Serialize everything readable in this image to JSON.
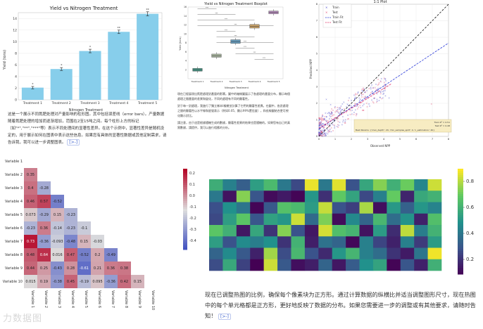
{
  "panel_bar": {
    "title": "Yield vs Nitrogen Treatment",
    "xlabel": "Nitrogen Treatment",
    "ylabel": "Yield (tons)",
    "paragraph": "这是一个展示不同氮肥处理对产量影响的柱形图。其中包括误差线（error bars）。产量数据随着氮肥处理的增加而逐渐增加，范围在2至15吨之间。每个柱形上方的标记（如\"*\",\"**\",\"***\"等）表示不同处理间的显著性差异。在这个示例中，显著性差异是随机设定的，用于展示如何在图表中表示这些信息。如果您有具体的显著性数据或其他定制需求，请告诉我，我可以进一步调整图表。",
    "regen": "[>-]"
  },
  "panel_box": {
    "title": "Yield vs Nitrogen Treatment Boxplot",
    "xlabel": "Nitrogen Treatment",
    "ylabel": "Yield (tons)",
    "p1": "現在已經展現出氮肥處理對產量的影響。圖中的箱線圖展示了各處理的產量分布，顯示每個處理之間產量的差異和變化，不同的處理有不同的顯著性。",
    "p2": "對于每一對處理，我進行了獨立樣本t檢驗並計算了它們的顯著性差異。在圖中，各對處理之間的顯著性以水平線和星號表示（例如0.05、顯示99%置信度），和長線圖結合更可視化顯示對比。",
    "p3": "請注意，由于這是根據隨機生成的數據，顯著性差異的結果也是隨機的。如果您有自己的真實數據，請提供，我可以進行相應的分析。"
  },
  "panel_scatter": {
    "title": "1:1 Plot",
    "xlabel": "Observed NPP",
    "ylabel": "Predicted NPP",
    "legend": [
      "Train",
      "Test",
      "Train Fit",
      "Test Fit"
    ],
    "annot_train": "Train R² = 0.51",
    "annot_test": "Test R² = 0.48",
    "best_params": "Best Params: {'max_depth': 20, 'min_samples_split': 4, 'n_estimators': 40}"
  },
  "panel_corr": {
    "variables": [
      "Variable 1",
      "Variable 2",
      "Variable 3",
      "Variable 4",
      "Variable 5",
      "Variable 6",
      "Variable 7",
      "Variable 8",
      "Variable 9",
      "Variable 10"
    ],
    "colorbar_ticks": [
      "0.2",
      "0.1",
      "0.0",
      "-0.1",
      "-0.2",
      "-0.3",
      "-0.4"
    ],
    "rows": [
      [],
      [
        "0.35"
      ],
      [
        "0.4",
        "-0.28"
      ],
      [
        "0.46",
        "0.57",
        "-0.52"
      ],
      [
        "0.073",
        "-0.29",
        "0.15",
        "-0.23"
      ],
      [
        "-0.23",
        "0.36",
        "-0.14",
        "-0.23",
        "-0.1"
      ],
      [
        "0.73",
        "-0.36",
        "-0.093",
        "-0.48",
        "0.15",
        "-0.03"
      ],
      [
        "0.48",
        "0.64",
        "0.016",
        "0.47",
        "-0.52",
        "0.2",
        "-0.49"
      ],
      [
        "0.44",
        "0.25",
        "-0.43",
        "0.28",
        "-0.61",
        "0.21",
        "0.36",
        "0.38"
      ],
      [
        "0.015",
        "0.19",
        "-0.38",
        "0.45",
        "-0.19",
        "0.095",
        "-0.36",
        "0.42",
        "0.15"
      ]
    ]
  },
  "panel_heat": {
    "colorbar_ticks": [
      "0.8",
      "0.6",
      "0.4",
      "0.2"
    ],
    "paragraph": "现在已调整热图的比例，确保每个像素块为正方形。通过计算数据的纵横比并适当调整图形尺寸，现在热图中的每个单元格都是正方形，更好地反映了数据的分布。如果您需要进一步的调整或有其他要求，请随时告知！",
    "regen": "[>-]"
  },
  "watermark": "力数据图",
  "chart_data": [
    {
      "type": "bar",
      "title": "Yield vs Nitrogen Treatment",
      "categories": [
        "Treatment 1",
        "Treatment 2",
        "Treatment 3",
        "Treatment 4",
        "Treatment 5"
      ],
      "values": [
        2.1,
        5.3,
        8.4,
        11.7,
        14.8
      ],
      "errors": [
        0.2,
        0.25,
        0.3,
        0.3,
        0.35
      ],
      "significance": [
        "*",
        "*",
        "*",
        "**",
        "**"
      ],
      "ylim": [
        0,
        15
      ],
      "yticks": [
        0,
        2,
        4,
        6,
        8,
        10,
        12,
        14
      ],
      "xlabel": "Nitrogen Treatment",
      "ylabel": "Yield (tons)",
      "color": "#87ceeb"
    },
    {
      "type": "box",
      "title": "Yield vs Nitrogen Treatment Boxplot",
      "categories": [
        "Treatment 1",
        "Treatment 2",
        "Treatment 3",
        "Treatment 4",
        "Treatment 5"
      ],
      "medians": [
        2.0,
        5.1,
        8.3,
        11.7,
        14.8
      ],
      "q1": [
        1.7,
        4.8,
        7.9,
        11.3,
        14.5
      ],
      "q3": [
        2.3,
        5.5,
        8.7,
        12.1,
        15.1
      ],
      "ylim": [
        0,
        16
      ],
      "yticks": [
        2,
        4,
        6,
        8,
        10,
        12,
        14,
        16
      ]
    },
    {
      "type": "scatter",
      "title": "1:1 Plot",
      "xlim": [
        0,
        8
      ],
      "ylim": [
        0,
        8
      ],
      "xticks": [
        0,
        1,
        2,
        3,
        4,
        5,
        6,
        7,
        8
      ],
      "yticks": [
        0,
        1,
        2,
        3,
        4,
        5,
        6,
        7,
        8
      ],
      "series": [
        {
          "name": "Train",
          "color": "#4040c8"
        },
        {
          "name": "Test",
          "color": "#e0406a"
        },
        {
          "name": "Train Fit",
          "color": "#2a3ad8",
          "slope": 0.65,
          "intercept": 0.45
        },
        {
          "name": "Test Fit",
          "color": "#e0306a",
          "slope": 0.6,
          "intercept": 0.5
        }
      ]
    },
    {
      "type": "heatmap",
      "title": "",
      "rows": 10,
      "cols": 10,
      "colormap": "lower-triangle correlation, coolwarm"
    },
    {
      "type": "heatmap",
      "title": "",
      "rows": 8,
      "cols": 17,
      "values": [
        [
          0.61,
          0.44,
          0.32,
          0.55,
          0.66,
          0.41,
          0.25,
          0.92,
          0.41,
          0.91,
          0.28,
          0.58,
          0.78,
          0.62,
          0.74,
          0.46,
          0.88
        ],
        [
          0.41,
          0.1,
          0.78,
          0.29,
          0.08,
          0.12,
          0.06,
          0.52,
          0.18,
          0.72,
          0.57,
          0.25,
          0.44,
          0.73,
          0.15,
          0.59,
          0.63
        ],
        [
          0.27,
          0.5,
          0.4,
          0.06,
          0.3,
          0.69,
          0.66,
          0.54,
          0.87,
          0.28,
          0.22,
          0.83,
          0.09,
          0.53,
          0.33,
          0.52,
          0.45
        ],
        [
          0.25,
          0.55,
          0.71,
          0.29,
          0.56,
          0.52,
          0.88,
          0.36,
          0.77,
          0.08,
          0.47,
          0.34,
          0.65,
          0.37,
          0.51,
          0.14,
          0.68
        ],
        [
          0.71,
          0.62,
          0.11,
          0.58,
          0.19,
          0.78,
          0.28,
          0.11,
          0.89,
          0.68,
          0.64,
          0.1,
          0.54,
          0.17,
          0.86,
          0.43,
          0.63
        ],
        [
          0.55,
          0.28,
          0.48,
          0.43,
          0.5,
          0.19,
          0.63,
          0.13,
          0.39,
          0.34,
          0.07,
          0.44,
          0.24,
          0.14,
          0.44,
          0.21,
          0.54
        ],
        [
          0.34,
          0.48,
          0.3,
          0.14,
          0.82,
          0.26,
          0.65,
          0.28,
          0.16,
          0.52,
          0.64,
          0.44,
          0.37,
          0.19,
          0.12,
          0.4,
          0.93
        ],
        [
          0.26,
          0.59,
          0.23,
          0.05,
          0.88,
          0.3,
          0.09,
          0.13,
          0.34,
          0.11,
          0.31,
          0.5,
          0.57,
          0.06,
          0.29,
          0.14,
          0.62
        ]
      ],
      "colormap": "viridis",
      "vmin": 0.05,
      "vmax": 0.95
    }
  ]
}
